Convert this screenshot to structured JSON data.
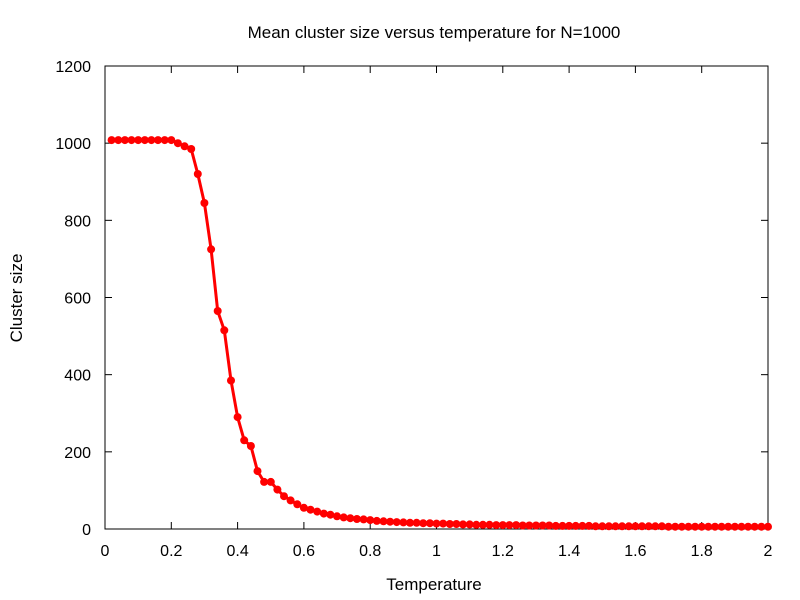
{
  "chart_data": {
    "type": "line",
    "title": "Mean cluster size versus temperature for N=1000",
    "xlabel": "Temperature",
    "ylabel": "Cluster size",
    "xlim": [
      0,
      2
    ],
    "ylim": [
      0,
      1200
    ],
    "x_ticks": [
      "0",
      "0.2",
      "0.4",
      "0.6",
      "0.8",
      "1",
      "1.2",
      "1.4",
      "1.6",
      "1.8",
      "2"
    ],
    "y_ticks": [
      "0",
      "200",
      "400",
      "600",
      "800",
      "1000",
      "1200"
    ],
    "grid": false,
    "legend": "none",
    "series": [
      {
        "color": "#ff0000",
        "marker": "circle",
        "x": [
          0.02,
          0.04,
          0.06,
          0.08,
          0.1,
          0.12,
          0.14,
          0.16,
          0.18,
          0.2,
          0.22,
          0.24,
          0.26,
          0.28,
          0.3,
          0.32,
          0.34,
          0.36,
          0.38,
          0.4,
          0.42,
          0.44,
          0.46,
          0.48,
          0.5,
          0.52,
          0.54,
          0.56,
          0.58,
          0.6,
          0.62,
          0.64,
          0.66,
          0.68,
          0.7,
          0.72,
          0.74,
          0.76,
          0.78,
          0.8,
          0.82,
          0.84,
          0.86,
          0.88,
          0.9,
          0.92,
          0.94,
          0.96,
          0.98,
          1.0,
          1.02,
          1.04,
          1.06,
          1.08,
          1.1,
          1.12,
          1.14,
          1.16,
          1.18,
          1.2,
          1.22,
          1.24,
          1.26,
          1.28,
          1.3,
          1.32,
          1.34,
          1.36,
          1.38,
          1.4,
          1.42,
          1.44,
          1.46,
          1.48,
          1.5,
          1.52,
          1.54,
          1.56,
          1.58,
          1.6,
          1.62,
          1.64,
          1.66,
          1.68,
          1.7,
          1.72,
          1.74,
          1.76,
          1.78,
          1.8,
          1.82,
          1.84,
          1.86,
          1.88,
          1.9,
          1.92,
          1.94,
          1.96,
          1.98,
          2.0
        ],
        "y": [
          1008,
          1008,
          1008,
          1008,
          1008,
          1008,
          1008,
          1008,
          1008,
          1008,
          1000,
          992,
          985,
          920,
          845,
          725,
          565,
          515,
          385,
          290,
          230,
          215,
          150,
          122,
          122,
          102,
          85,
          74,
          64,
          55,
          50,
          45,
          40,
          37,
          33,
          30,
          28,
          26,
          25,
          23,
          21,
          20,
          19,
          18,
          17,
          16,
          16,
          15,
          15,
          14,
          14,
          13,
          13,
          12,
          12,
          11,
          11,
          11,
          10,
          10,
          10,
          10,
          9,
          9,
          9,
          9,
          9,
          8,
          8,
          8,
          8,
          8,
          8,
          7,
          7,
          7,
          7,
          7,
          7,
          7,
          7,
          7,
          7,
          7,
          6,
          6,
          6,
          6,
          6,
          6,
          6,
          6,
          6,
          6,
          6,
          6,
          6,
          6,
          6,
          6
        ]
      }
    ]
  }
}
